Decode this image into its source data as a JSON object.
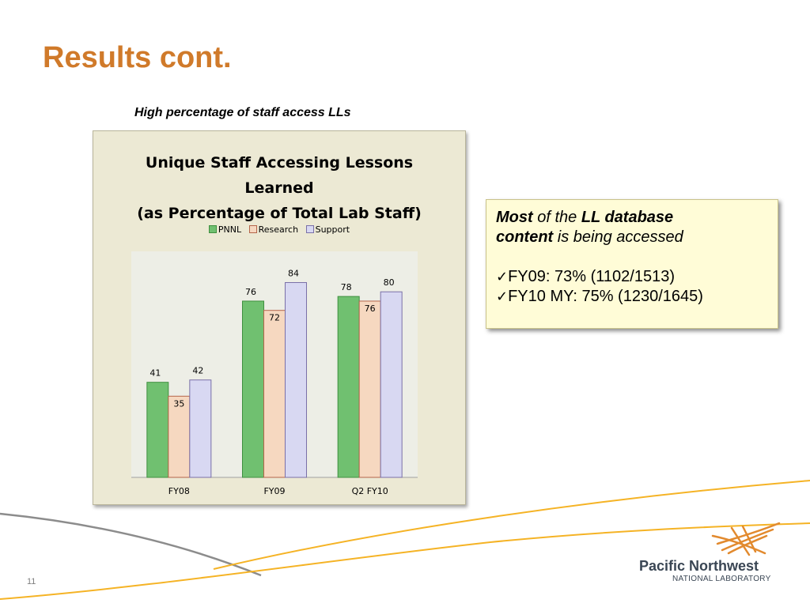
{
  "slide": {
    "title": "Results cont.",
    "subtitle": "High percentage of staff access LLs",
    "page_number": "11"
  },
  "info_box": {
    "line1_em1": "Most",
    "line1_t1": " of the ",
    "line1_em2": "LL database",
    "line2_em": "content",
    "line2_t": " is being accessed",
    "bullets": [
      "FY09: 73% (1102/1513)",
      "FY10 MY: 75% (1230/1645)"
    ]
  },
  "logo": {
    "line1": "Pacific Northwest",
    "line2": "NATIONAL LABORATORY"
  },
  "colors": {
    "title": "#d07a2a",
    "pnnl": "#70c070",
    "research": "#f6d8c0",
    "support": "#d8d8f2",
    "accent_line": "#f5b325"
  },
  "chart_data": {
    "type": "bar",
    "title_lines": [
      "Unique Staff Accessing Lessons",
      "Learned",
      "(as Percentage of Total Lab Staff)"
    ],
    "categories": [
      "FY08",
      "FY09",
      "Q2 FY10"
    ],
    "series": [
      {
        "name": "PNNL",
        "values": [
          41,
          76,
          78
        ],
        "color": "#70c070",
        "stroke": "#3f8f3f"
      },
      {
        "name": "Research",
        "values": [
          35,
          72,
          76
        ],
        "color": "#f6d8c0",
        "stroke": "#b4654a"
      },
      {
        "name": "Support",
        "values": [
          42,
          84,
          80
        ],
        "color": "#d8d8f2",
        "stroke": "#7a70a8"
      }
    ],
    "ylim": [
      0,
      90
    ],
    "legend": "top",
    "grid": false,
    "data_labels": true
  }
}
